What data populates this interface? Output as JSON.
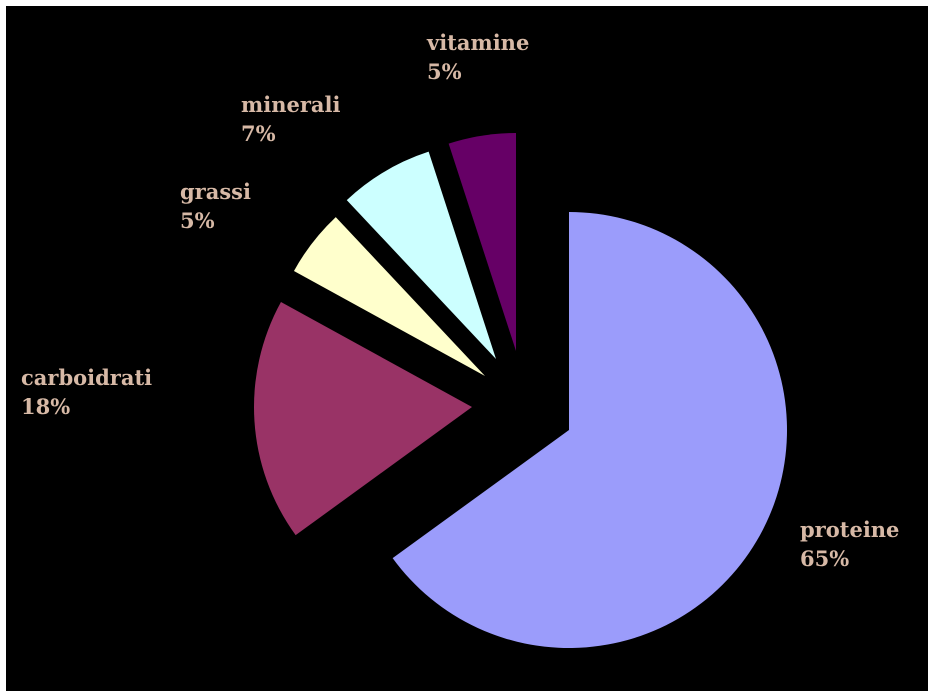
{
  "chart_data": {
    "type": "pie",
    "title": "",
    "slices": [
      {
        "label": "proteine",
        "value": 65,
        "value_label": "65%",
        "color": "#9b9cfb"
      },
      {
        "label": "carboidrati",
        "value": 18,
        "value_label": "18%",
        "color": "#993366"
      },
      {
        "label": "grassi",
        "value": 5,
        "value_label": "5%",
        "color": "#ffffcc"
      },
      {
        "label": "minerali",
        "value": 7,
        "value_label": "7%",
        "color": "#ccffff"
      },
      {
        "label": "vitamine",
        "value": 5,
        "value_label": "5%",
        "color": "#660066"
      }
    ],
    "exploded": true,
    "legend": "none",
    "background": "#000000",
    "label_color": "#d7b9a6"
  }
}
